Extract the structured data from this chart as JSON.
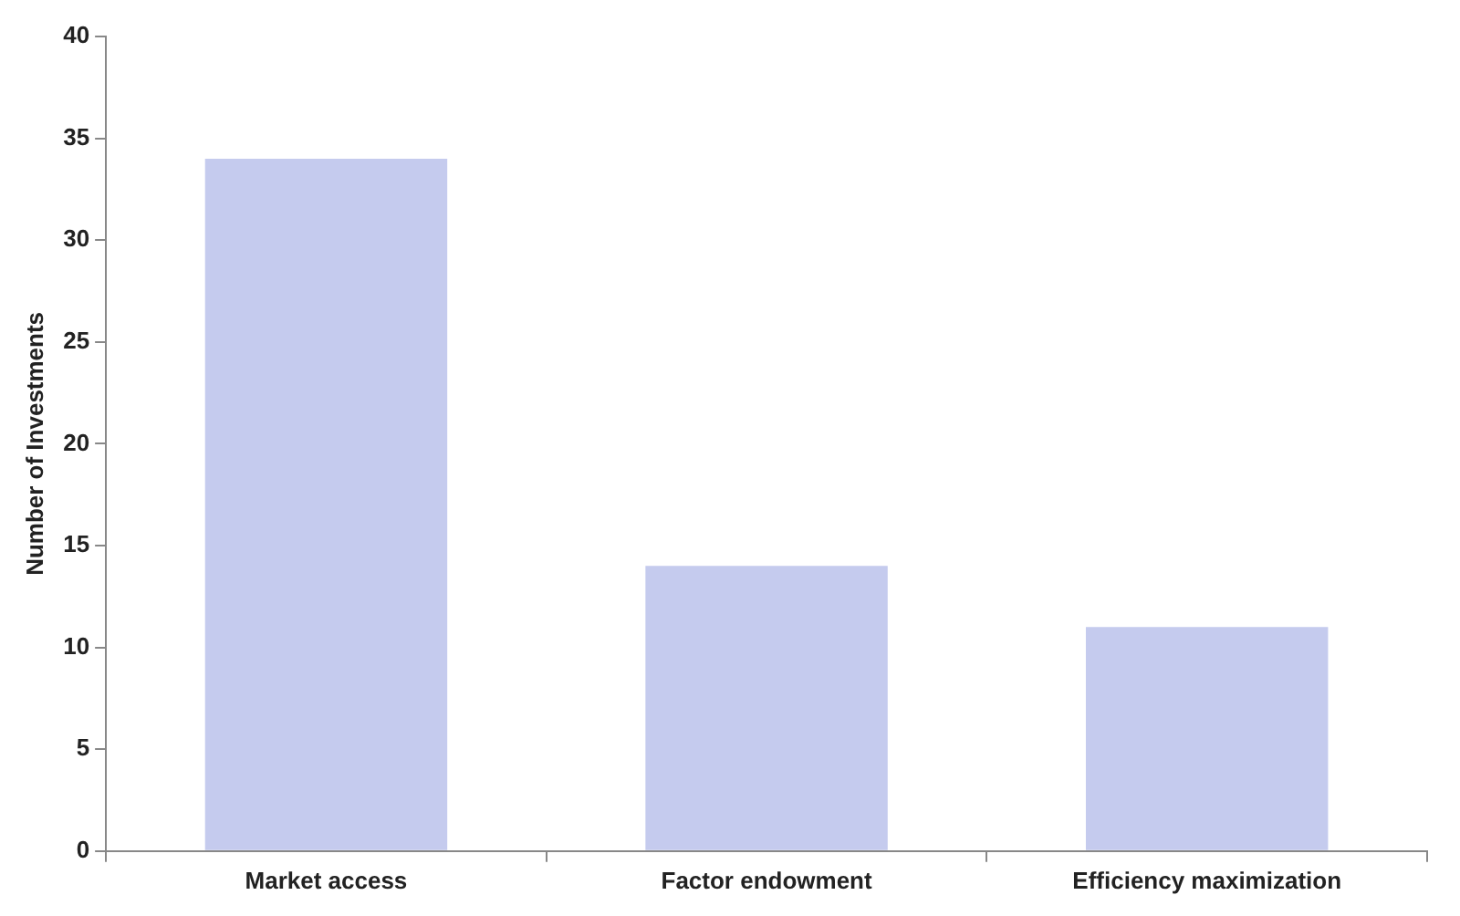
{
  "chart_data": {
    "type": "bar",
    "ylabel": "Number of Investments",
    "categories": [
      "Market access",
      "Factor endowment",
      "Efficiency maximization"
    ],
    "values": [
      34,
      14,
      11
    ],
    "color": "#c5cbee",
    "ylim": [
      0,
      40
    ],
    "yticks": [
      0,
      5,
      10,
      15,
      20,
      25,
      30,
      35,
      40
    ],
    "grid": false,
    "legend": false
  }
}
